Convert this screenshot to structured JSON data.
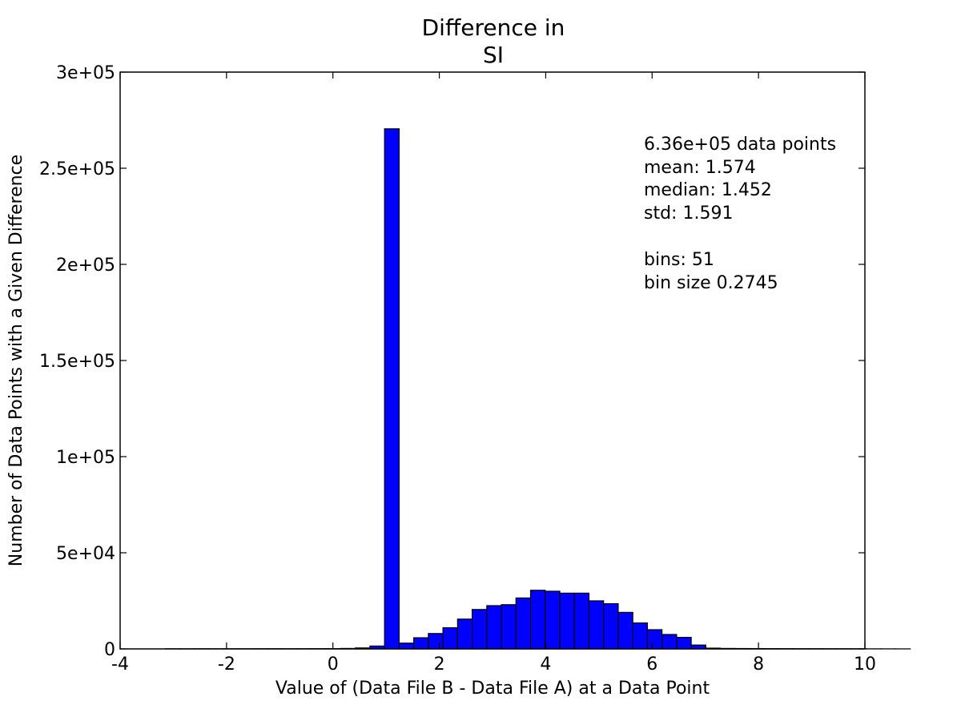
{
  "chart_data": {
    "type": "bar",
    "title_lines": [
      "Difference in",
      "SI"
    ],
    "xlabel": "Value of (Data File B - Data File A) at a Data Point",
    "ylabel": "Number of Data Points with a Given Difference",
    "xlim": [
      -4,
      10
    ],
    "ylim": [
      0,
      300000
    ],
    "x_ticks": [
      -4,
      -2,
      0,
      2,
      4,
      6,
      8,
      10
    ],
    "x_tick_labels": [
      "-4",
      "-2",
      "0",
      "2",
      "4",
      "6",
      "8",
      "10"
    ],
    "y_ticks": [
      0,
      50000,
      100000,
      150000,
      200000,
      250000,
      300000
    ],
    "y_tick_labels": [
      "0",
      "5e+04",
      "1e+05",
      "1.5e+05",
      "2e+05",
      "2.5e+05",
      "3e+05"
    ],
    "bin_start": -3.147,
    "bin_width": 0.2745,
    "counts": [
      60,
      50,
      70,
      60,
      80,
      70,
      90,
      100,
      90,
      110,
      130,
      150,
      250,
      500,
      1500,
      270500,
      3000,
      5800,
      8000,
      11000,
      15500,
      20500,
      22500,
      23000,
      26500,
      30500,
      30000,
      29000,
      29000,
      25000,
      23500,
      19000,
      13500,
      10000,
      7500,
      6000,
      2000,
      400,
      250,
      200,
      180,
      150,
      130,
      110,
      100,
      80,
      70,
      60,
      50,
      40,
      30
    ],
    "bar_color": "#0000ff",
    "grid": false,
    "annotation_lines": [
      "6.36e+05 data points",
      "mean: 1.574",
      "median: 1.452",
      "std: 1.591",
      "",
      "bins: 51",
      "bin size 0.2745"
    ]
  }
}
